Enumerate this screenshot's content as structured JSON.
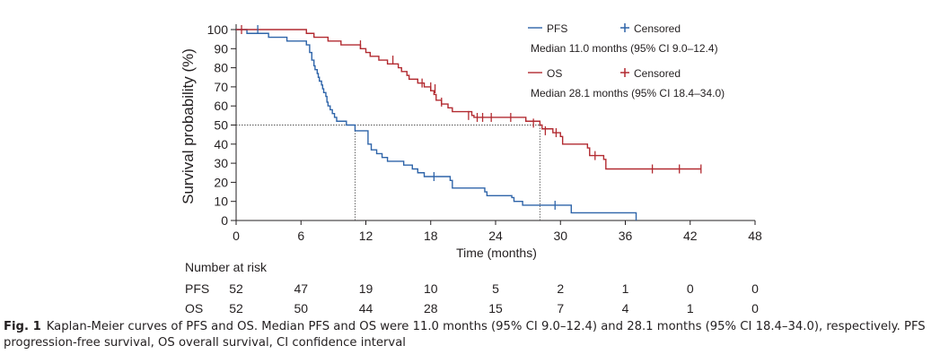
{
  "chart_data": {
    "type": "line",
    "title": "",
    "xlabel": "Time (months)",
    "ylabel": "Survival probability (%)",
    "xlim": [
      0,
      48
    ],
    "ylim": [
      0,
      100
    ],
    "x_ticks": [
      0,
      6,
      12,
      18,
      24,
      30,
      36,
      42,
      48
    ],
    "y_ticks": [
      0,
      10,
      20,
      30,
      40,
      50,
      60,
      70,
      80,
      90,
      100
    ],
    "grid": false,
    "legend_position": "top-right",
    "median_reference": {
      "y": 50,
      "x_values": [
        11.0,
        28.1
      ]
    },
    "series": [
      {
        "name": "PFS",
        "color": "#2e64a9",
        "censored_label": "Censored",
        "median_text": "Median 11.0 months (95% CI 9.0–12.4)",
        "steps": [
          [
            0,
            100
          ],
          [
            0.5,
            100
          ],
          [
            1.0,
            98
          ],
          [
            2.8,
            98
          ],
          [
            3.0,
            96
          ],
          [
            4.5,
            96
          ],
          [
            4.7,
            94
          ],
          [
            6.3,
            94
          ],
          [
            6.5,
            92
          ],
          [
            6.8,
            88
          ],
          [
            7.0,
            84
          ],
          [
            7.2,
            81
          ],
          [
            7.3,
            79
          ],
          [
            7.5,
            77
          ],
          [
            7.6,
            75
          ],
          [
            7.7,
            73
          ],
          [
            7.9,
            71
          ],
          [
            8.0,
            69
          ],
          [
            8.1,
            67
          ],
          [
            8.3,
            65
          ],
          [
            8.4,
            62
          ],
          [
            8.5,
            60
          ],
          [
            8.7,
            58
          ],
          [
            8.9,
            56
          ],
          [
            9.1,
            54
          ],
          [
            9.3,
            52
          ],
          [
            10.2,
            50
          ],
          [
            10.5,
            50
          ],
          [
            11.0,
            47
          ],
          [
            12.0,
            47
          ],
          [
            12.2,
            40
          ],
          [
            12.5,
            37
          ],
          [
            13.0,
            35
          ],
          [
            13.5,
            33
          ],
          [
            14.0,
            31
          ],
          [
            15.5,
            29
          ],
          [
            16.3,
            27
          ],
          [
            16.8,
            25
          ],
          [
            17.4,
            23
          ],
          [
            19.8,
            21
          ],
          [
            20.0,
            17
          ],
          [
            23.0,
            15
          ],
          [
            23.2,
            13
          ],
          [
            25.5,
            12
          ],
          [
            25.7,
            10
          ],
          [
            26.3,
            10
          ],
          [
            26.5,
            8
          ],
          [
            30.5,
            8
          ],
          [
            31.0,
            4
          ],
          [
            37.0,
            4
          ],
          [
            37.0,
            0
          ]
        ],
        "censor_times": [
          [
            2.0,
            100
          ],
          [
            18.3,
            23
          ],
          [
            29.5,
            8
          ]
        ],
        "risk": [
          52,
          47,
          19,
          10,
          5,
          2,
          1,
          0,
          0
        ]
      },
      {
        "name": "OS",
        "color": "#b22a30",
        "censored_label": "Censored",
        "median_text": "Median 28.1 months (95% CI 18.4–34.0)",
        "steps": [
          [
            0,
            100
          ],
          [
            6.3,
            100
          ],
          [
            6.5,
            98
          ],
          [
            7.2,
            96
          ],
          [
            8.3,
            96
          ],
          [
            8.5,
            94
          ],
          [
            9.5,
            94
          ],
          [
            9.7,
            92
          ],
          [
            11.3,
            92
          ],
          [
            11.5,
            90
          ],
          [
            12.0,
            88
          ],
          [
            12.4,
            86
          ],
          [
            13.2,
            84
          ],
          [
            14.0,
            82
          ],
          [
            15.0,
            80
          ],
          [
            15.3,
            78
          ],
          [
            15.8,
            76
          ],
          [
            16.0,
            74
          ],
          [
            16.8,
            72
          ],
          [
            17.4,
            70
          ],
          [
            18.0,
            68
          ],
          [
            18.3,
            66
          ],
          [
            18.5,
            63
          ],
          [
            19.0,
            61
          ],
          [
            19.6,
            59
          ],
          [
            20.0,
            57
          ],
          [
            21.8,
            55
          ],
          [
            22.0,
            54
          ],
          [
            23.5,
            54
          ],
          [
            24.2,
            54
          ],
          [
            26.8,
            52
          ],
          [
            28.1,
            50
          ],
          [
            28.3,
            48
          ],
          [
            29.3,
            46
          ],
          [
            30.0,
            44
          ],
          [
            30.2,
            40
          ],
          [
            32.5,
            38
          ],
          [
            32.7,
            34
          ],
          [
            34.0,
            32
          ],
          [
            34.2,
            27
          ],
          [
            43.0,
            27
          ]
        ],
        "censor_times": [
          [
            0.5,
            100
          ],
          [
            11.5,
            92
          ],
          [
            14.5,
            84
          ],
          [
            17.2,
            72
          ],
          [
            18.0,
            70
          ],
          [
            18.4,
            69
          ],
          [
            19.0,
            62
          ],
          [
            21.5,
            55
          ],
          [
            22.3,
            54
          ],
          [
            22.8,
            54
          ],
          [
            23.6,
            54
          ],
          [
            25.4,
            54
          ],
          [
            27.5,
            51
          ],
          [
            28.6,
            47
          ],
          [
            29.6,
            46
          ],
          [
            33.2,
            34
          ],
          [
            38.5,
            27
          ],
          [
            41.0,
            27
          ],
          [
            43.0,
            27
          ]
        ],
        "risk": [
          52,
          50,
          44,
          28,
          15,
          7,
          4,
          1,
          0
        ]
      }
    ]
  },
  "risk_table": {
    "title": "Number at risk",
    "rows": [
      {
        "label": "PFS",
        "values": [
          "52",
          "47",
          "19",
          "10",
          "5",
          "2",
          "1",
          "0",
          "0"
        ]
      },
      {
        "label": "OS",
        "values": [
          "52",
          "50",
          "44",
          "28",
          "15",
          "7",
          "4",
          "1",
          "0"
        ]
      }
    ]
  },
  "caption": {
    "label": "Fig. 1",
    "text": "Kaplan-Meier curves of PFS and OS. Median PFS and OS were 11.0 months (95% CI 9.0–12.4) and 28.1 months (95% CI 18.4–34.0), respectively. PFS progression-free survival, OS overall survival, CI confidence interval"
  }
}
